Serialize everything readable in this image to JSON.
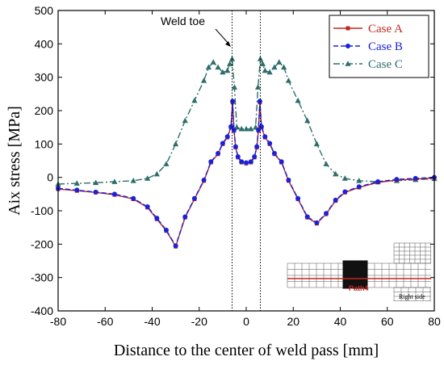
{
  "chart_data": {
    "type": "line",
    "xlabel": "Distance to the center of weld pass [mm]",
    "ylabel": "Aix stress [MPa]",
    "xlim": [
      -80,
      80
    ],
    "ylim": [
      -400,
      500
    ],
    "xticks": [
      -80,
      -60,
      -40,
      -20,
      0,
      20,
      40,
      60,
      80
    ],
    "yticks": [
      -400,
      -300,
      -200,
      -100,
      0,
      100,
      200,
      300,
      400,
      500
    ],
    "grid": false,
    "legend_position": "top-right",
    "annotation": "Weld toe",
    "weld_toe_x": [
      -6,
      6
    ],
    "inset_labels": {
      "path": "Path4",
      "side": "Right side"
    },
    "series": [
      {
        "name": "Case A",
        "color": "#c0281f",
        "marker": "square",
        "x": [
          -80,
          -72,
          -64,
          -56,
          -48,
          -42,
          -38,
          -34,
          -30,
          -26,
          -22,
          -18,
          -15,
          -12,
          -10,
          -8,
          -6.5,
          -5.8,
          -5.2,
          -4.5,
          -3.5,
          -2,
          0,
          2,
          3.5,
          4.5,
          5.2,
          5.8,
          6.5,
          8,
          10,
          12,
          15,
          18,
          22,
          26,
          30,
          34,
          38,
          42,
          48,
          56,
          64,
          72,
          80
        ],
        "y": [
          -35,
          -40,
          -45,
          -52,
          -65,
          -90,
          -125,
          -160,
          -207,
          -120,
          -65,
          -10,
          45,
          70,
          100,
          120,
          150,
          225,
          140,
          90,
          60,
          45,
          42,
          45,
          60,
          90,
          140,
          225,
          150,
          120,
          100,
          70,
          45,
          -10,
          -65,
          -120,
          -138,
          -110,
          -70,
          -45,
          -30,
          -15,
          -8,
          -5,
          -2
        ]
      },
      {
        "name": "Case B",
        "color": "#1a22d8",
        "marker": "circle",
        "x": [
          -80,
          -72,
          -64,
          -56,
          -48,
          -42,
          -38,
          -34,
          -30,
          -26,
          -22,
          -18,
          -15,
          -12,
          -10,
          -8,
          -6.5,
          -5.8,
          -5.2,
          -4.5,
          -3.5,
          -2,
          0,
          2,
          3.5,
          4.5,
          5.2,
          5.8,
          6.5,
          8,
          10,
          12,
          15,
          18,
          22,
          26,
          30,
          34,
          38,
          42,
          48,
          56,
          64,
          72,
          80
        ],
        "y": [
          -33,
          -38,
          -44,
          -50,
          -63,
          -88,
          -122,
          -158,
          -205,
          -118,
          -63,
          -8,
          47,
          72,
          102,
          122,
          152,
          228,
          142,
          92,
          62,
          47,
          44,
          47,
          62,
          92,
          142,
          228,
          152,
          122,
          102,
          72,
          47,
          -8,
          -63,
          -118,
          -136,
          -108,
          -68,
          -43,
          -28,
          -13,
          -6,
          -3,
          0
        ]
      },
      {
        "name": "Case C",
        "color": "#2d6e6a",
        "marker": "triangle",
        "x": [
          -80,
          -72,
          -64,
          -56,
          -48,
          -42,
          -38,
          -34,
          -30,
          -26,
          -22,
          -18,
          -16,
          -14,
          -12,
          -10,
          -8,
          -7,
          -6,
          -5,
          -4,
          -2,
          0,
          2,
          4,
          5,
          6,
          7,
          8,
          10,
          12,
          14,
          16,
          18,
          22,
          26,
          30,
          34,
          38,
          42,
          48,
          56,
          64,
          72,
          80
        ],
        "y": [
          -20,
          -18,
          -16,
          -13,
          -10,
          -3,
          10,
          40,
          100,
          170,
          230,
          290,
          330,
          345,
          330,
          315,
          320,
          340,
          355,
          270,
          150,
          145,
          145,
          145,
          150,
          270,
          355,
          340,
          320,
          315,
          330,
          345,
          330,
          290,
          230,
          170,
          100,
          40,
          10,
          -3,
          -10,
          -13,
          -10,
          -7,
          -4
        ]
      }
    ]
  }
}
